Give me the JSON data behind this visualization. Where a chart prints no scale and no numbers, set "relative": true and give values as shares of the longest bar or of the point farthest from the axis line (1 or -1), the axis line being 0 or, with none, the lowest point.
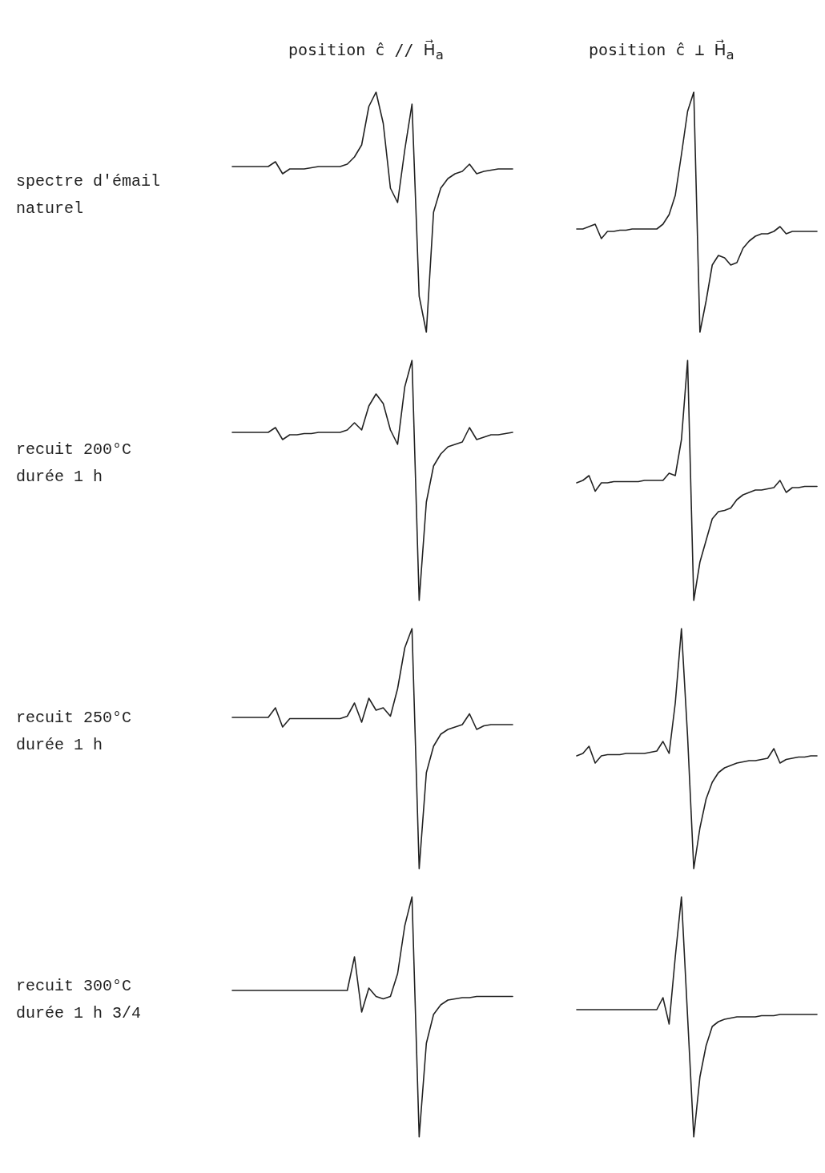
{
  "chart_data": [
    {
      "type": "line",
      "relative": true,
      "title": "position ĉ // H⃗$_{a}$",
      "annotations": [
        "spectre d'émail",
        "naturel"
      ],
      "color": "#222222",
      "marker": "none",
      "categories": [
        null,
        null,
        null,
        null,
        null,
        null,
        null,
        null,
        null,
        null,
        null,
        null,
        null,
        null,
        null,
        null,
        null,
        null,
        null,
        null,
        null,
        null,
        null,
        null,
        null,
        null,
        null,
        null,
        null,
        null,
        null,
        null,
        null,
        null,
        null,
        null,
        null,
        null,
        null,
        null
      ],
      "values": [
        0.69,
        0.69,
        0.69,
        0.69,
        0.69,
        0.69,
        0.71,
        0.66,
        0.68,
        0.68,
        0.68,
        0.685,
        0.69,
        0.69,
        0.69,
        0.69,
        0.7,
        0.73,
        0.78,
        0.94,
        1,
        0.87,
        0.6,
        0.54,
        0.76,
        0.95,
        0.15,
        0,
        0.5,
        0.6,
        0.64,
        0.66,
        0.67,
        0.7,
        0.66,
        0.67,
        0.675,
        0.68,
        0.68,
        0.68
      ]
    },
    {
      "type": "line",
      "relative": true,
      "title": "position ĉ ⊥ H⃗$_{a}$",
      "color": "#222222",
      "marker": "none",
      "categories": [
        null,
        null,
        null,
        null,
        null,
        null,
        null,
        null,
        null,
        null,
        null,
        null,
        null,
        null,
        null,
        null,
        null,
        null,
        null,
        null,
        null,
        null,
        null,
        null,
        null,
        null,
        null,
        null,
        null,
        null,
        null,
        null,
        null,
        null,
        null,
        null,
        null,
        null,
        null,
        null
      ],
      "values": [
        0.43,
        0.43,
        0.44,
        0.45,
        0.39,
        0.42,
        0.42,
        0.425,
        0.425,
        0.43,
        0.43,
        0.43,
        0.43,
        0.43,
        0.45,
        0.49,
        0.57,
        0.74,
        0.92,
        1,
        0,
        0.13,
        0.28,
        0.32,
        0.31,
        0.28,
        0.29,
        0.35,
        0.38,
        0.4,
        0.41,
        0.41,
        0.42,
        0.44,
        0.41,
        0.42,
        0.42,
        0.42,
        0.42,
        0.42
      ]
    },
    {
      "type": "line",
      "relative": true,
      "annotations": [
        "recuit 200°C",
        "durée 1 h"
      ],
      "color": "#222222",
      "marker": "none",
      "categories": [
        null,
        null,
        null,
        null,
        null,
        null,
        null,
        null,
        null,
        null,
        null,
        null,
        null,
        null,
        null,
        null,
        null,
        null,
        null,
        null,
        null,
        null,
        null,
        null,
        null,
        null,
        null,
        null,
        null,
        null,
        null,
        null,
        null,
        null,
        null,
        null,
        null,
        null,
        null,
        null
      ],
      "values": [
        0.7,
        0.7,
        0.7,
        0.7,
        0.7,
        0.7,
        0.72,
        0.67,
        0.69,
        0.69,
        0.695,
        0.695,
        0.7,
        0.7,
        0.7,
        0.7,
        0.71,
        0.74,
        0.71,
        0.81,
        0.86,
        0.82,
        0.71,
        0.65,
        0.89,
        1,
        0,
        0.41,
        0.56,
        0.61,
        0.64,
        0.65,
        0.66,
        0.72,
        0.67,
        0.68,
        0.69,
        0.69,
        0.695,
        0.7
      ]
    },
    {
      "type": "line",
      "relative": true,
      "color": "#222222",
      "marker": "none",
      "categories": [
        null,
        null,
        null,
        null,
        null,
        null,
        null,
        null,
        null,
        null,
        null,
        null,
        null,
        null,
        null,
        null,
        null,
        null,
        null,
        null,
        null,
        null,
        null,
        null,
        null,
        null,
        null,
        null,
        null,
        null,
        null,
        null,
        null,
        null,
        null,
        null,
        null,
        null,
        null,
        null
      ],
      "values": [
        0.49,
        0.5,
        0.52,
        0.455,
        0.49,
        0.49,
        0.495,
        0.495,
        0.495,
        0.495,
        0.495,
        0.5,
        0.5,
        0.5,
        0.5,
        0.53,
        0.52,
        0.67,
        1,
        0,
        0.16,
        0.25,
        0.34,
        0.37,
        0.375,
        0.385,
        0.42,
        0.44,
        0.45,
        0.46,
        0.46,
        0.465,
        0.47,
        0.5,
        0.45,
        0.47,
        0.47,
        0.475,
        0.475,
        0.475
      ]
    },
    {
      "type": "line",
      "relative": true,
      "annotations": [
        "recuit 250°C",
        "durée 1 h"
      ],
      "color": "#222222",
      "marker": "none",
      "categories": [
        null,
        null,
        null,
        null,
        null,
        null,
        null,
        null,
        null,
        null,
        null,
        null,
        null,
        null,
        null,
        null,
        null,
        null,
        null,
        null,
        null,
        null,
        null,
        null,
        null,
        null,
        null,
        null,
        null,
        null,
        null,
        null,
        null,
        null,
        null,
        null,
        null,
        null,
        null,
        null
      ],
      "values": [
        0.63,
        0.63,
        0.63,
        0.63,
        0.63,
        0.63,
        0.67,
        0.59,
        0.625,
        0.625,
        0.625,
        0.625,
        0.625,
        0.625,
        0.625,
        0.625,
        0.635,
        0.69,
        0.61,
        0.71,
        0.66,
        0.67,
        0.635,
        0.75,
        0.92,
        1,
        0,
        0.4,
        0.51,
        0.56,
        0.58,
        0.59,
        0.6,
        0.645,
        0.58,
        0.595,
        0.6,
        0.6,
        0.6,
        0.6
      ]
    },
    {
      "type": "line",
      "relative": true,
      "color": "#222222",
      "marker": "none",
      "categories": [
        null,
        null,
        null,
        null,
        null,
        null,
        null,
        null,
        null,
        null,
        null,
        null,
        null,
        null,
        null,
        null,
        null,
        null,
        null,
        null,
        null,
        null,
        null,
        null,
        null,
        null,
        null,
        null,
        null,
        null,
        null,
        null,
        null,
        null,
        null,
        null,
        null,
        null,
        null,
        null
      ],
      "values": [
        0.47,
        0.48,
        0.51,
        0.44,
        0.47,
        0.475,
        0.475,
        0.475,
        0.48,
        0.48,
        0.48,
        0.48,
        0.485,
        0.49,
        0.53,
        0.48,
        0.69,
        1,
        0.55,
        0,
        0.17,
        0.29,
        0.36,
        0.4,
        0.42,
        0.43,
        0.44,
        0.445,
        0.45,
        0.45,
        0.455,
        0.46,
        0.5,
        0.44,
        0.455,
        0.46,
        0.465,
        0.465,
        0.47,
        0.47
      ]
    },
    {
      "type": "line",
      "relative": true,
      "annotations": [
        "recuit 300°C",
        "durée 1 h 3/4"
      ],
      "color": "#222222",
      "marker": "none",
      "categories": [
        null,
        null,
        null,
        null,
        null,
        null,
        null,
        null,
        null,
        null,
        null,
        null,
        null,
        null,
        null,
        null,
        null,
        null,
        null,
        null,
        null,
        null,
        null,
        null,
        null,
        null,
        null,
        null,
        null,
        null,
        null,
        null,
        null,
        null,
        null,
        null,
        null,
        null,
        null,
        null
      ],
      "values": [
        0.61,
        0.61,
        0.61,
        0.61,
        0.61,
        0.61,
        0.61,
        0.61,
        0.61,
        0.61,
        0.61,
        0.61,
        0.61,
        0.61,
        0.61,
        0.61,
        0.61,
        0.75,
        0.52,
        0.62,
        0.585,
        0.575,
        0.585,
        0.68,
        0.88,
        1,
        0,
        0.39,
        0.51,
        0.55,
        0.57,
        0.575,
        0.58,
        0.58,
        0.585,
        0.585,
        0.585,
        0.585,
        0.585,
        0.585
      ]
    },
    {
      "type": "line",
      "relative": true,
      "color": "#222222",
      "marker": "none",
      "categories": [
        null,
        null,
        null,
        null,
        null,
        null,
        null,
        null,
        null,
        null,
        null,
        null,
        null,
        null,
        null,
        null,
        null,
        null,
        null,
        null,
        null,
        null,
        null,
        null,
        null,
        null,
        null,
        null,
        null,
        null,
        null,
        null,
        null,
        null,
        null,
        null,
        null,
        null,
        null,
        null
      ],
      "values": [
        0.53,
        0.53,
        0.53,
        0.53,
        0.53,
        0.53,
        0.53,
        0.53,
        0.53,
        0.53,
        0.53,
        0.53,
        0.53,
        0.53,
        0.58,
        0.47,
        0.75,
        1,
        0.5,
        0,
        0.25,
        0.38,
        0.46,
        0.48,
        0.49,
        0.495,
        0.5,
        0.5,
        0.5,
        0.5,
        0.505,
        0.505,
        0.505,
        0.51,
        0.51,
        0.51,
        0.51,
        0.51,
        0.51,
        0.51
      ]
    }
  ]
}
